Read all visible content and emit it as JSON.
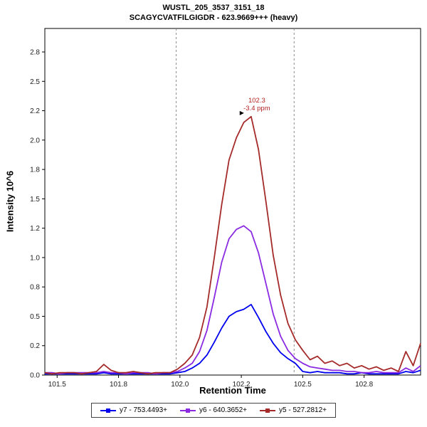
{
  "chart_data": {
    "type": "line",
    "title": "WUSTL_205_3537_3151_18",
    "subtitle": "SCAGYCVATFILGIGDR - 623.9669+++ (heavy)",
    "xlabel": "Retention Time",
    "ylabel": "Intensity 10^6",
    "xlim": [
      101.45,
      102.98
    ],
    "ylim": [
      0,
      2.95
    ],
    "x_ticks": {
      "values": [
        101.5,
        101.75,
        102.0,
        102.25,
        102.5,
        102.75
      ],
      "labels": [
        "101.5",
        "101.8",
        "102.0",
        "102.2",
        "102.5",
        "102.8"
      ]
    },
    "y_ticks": {
      "values": [
        0,
        0.25,
        0.5,
        0.75,
        1.0,
        1.25,
        1.5,
        1.75,
        2.0,
        2.25,
        2.5,
        2.75
      ],
      "labels": [
        "0.0",
        "0.2",
        "0.5",
        "0.8",
        "1.0",
        "1.2",
        "1.5",
        "1.8",
        "2.0",
        "2.2",
        "2.5",
        "2.8"
      ]
    },
    "integration_boundaries": [
      101.985,
      102.465
    ],
    "boundary_color": "#8a8a8a",
    "annotation": {
      "time_label": "102.3",
      "ppm_label": "-3.4 ppm",
      "x": 102.29,
      "y": 2.2,
      "color": "#b22222",
      "arrow": "▶"
    },
    "x": [
      101.45,
      101.48,
      101.51,
      101.54,
      101.57,
      101.6,
      101.63,
      101.66,
      101.69,
      101.72,
      101.75,
      101.78,
      101.81,
      101.84,
      101.87,
      101.9,
      101.93,
      101.96,
      101.99,
      102.02,
      102.05,
      102.08,
      102.11,
      102.14,
      102.17,
      102.2,
      102.23,
      102.26,
      102.29,
      102.32,
      102.35,
      102.38,
      102.41,
      102.44,
      102.47,
      102.5,
      102.53,
      102.56,
      102.59,
      102.62,
      102.65,
      102.68,
      102.71,
      102.74,
      102.77,
      102.8,
      102.83,
      102.86,
      102.89,
      102.92,
      102.95,
      102.98
    ],
    "series": [
      {
        "name": "y7 - 753.4493+",
        "color": "#0000ee",
        "values": [
          0.01,
          0.01,
          0.01,
          0.01,
          0.01,
          0.01,
          0.01,
          0.01,
          0.02,
          0.01,
          0.01,
          0.01,
          0.01,
          0.01,
          0.01,
          0.01,
          0.01,
          0.01,
          0.02,
          0.03,
          0.06,
          0.1,
          0.17,
          0.28,
          0.4,
          0.5,
          0.54,
          0.56,
          0.6,
          0.49,
          0.37,
          0.27,
          0.19,
          0.14,
          0.1,
          0.03,
          0.02,
          0.03,
          0.02,
          0.02,
          0.02,
          0.01,
          0.01,
          0.02,
          0.01,
          0.01,
          0.01,
          0.01,
          0.01,
          0.03,
          0.02,
          0.04
        ]
      },
      {
        "name": "y6 - 640.3652+",
        "color": "#8a2be2",
        "values": [
          0.02,
          0.02,
          0.01,
          0.02,
          0.02,
          0.02,
          0.02,
          0.02,
          0.03,
          0.02,
          0.02,
          0.01,
          0.02,
          0.02,
          0.02,
          0.01,
          0.02,
          0.02,
          0.03,
          0.06,
          0.1,
          0.2,
          0.38,
          0.66,
          0.96,
          1.16,
          1.24,
          1.27,
          1.22,
          1.04,
          0.78,
          0.52,
          0.33,
          0.21,
          0.14,
          0.1,
          0.07,
          0.06,
          0.05,
          0.04,
          0.04,
          0.03,
          0.03,
          0.02,
          0.02,
          0.03,
          0.02,
          0.02,
          0.02,
          0.06,
          0.03,
          0.08
        ]
      },
      {
        "name": "y5 - 527.2812+",
        "color": "#a52a2a",
        "values": [
          0.02,
          0.01,
          0.02,
          0.02,
          0.02,
          0.01,
          0.02,
          0.03,
          0.09,
          0.04,
          0.02,
          0.02,
          0.03,
          0.02,
          0.01,
          0.02,
          0.02,
          0.02,
          0.05,
          0.1,
          0.17,
          0.32,
          0.58,
          1.0,
          1.45,
          1.83,
          2.02,
          2.15,
          2.2,
          1.92,
          1.48,
          1.02,
          0.68,
          0.44,
          0.3,
          0.21,
          0.13,
          0.16,
          0.1,
          0.12,
          0.08,
          0.1,
          0.06,
          0.08,
          0.05,
          0.07,
          0.04,
          0.06,
          0.03,
          0.2,
          0.08,
          0.27
        ]
      }
    ]
  }
}
